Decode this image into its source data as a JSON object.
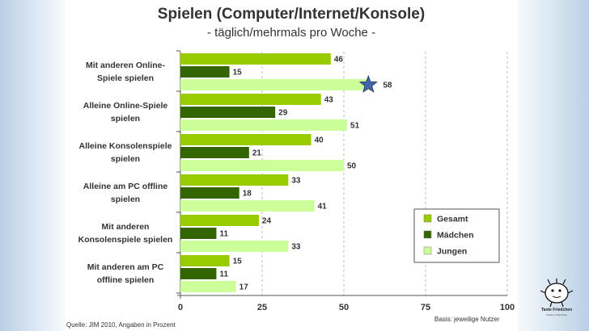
{
  "chart_data": {
    "type": "bar",
    "orientation": "horizontal",
    "title": "Spielen (Computer/Internet/Konsole)",
    "subtitle": "- täglich/mehrmals pro Woche -",
    "categories": [
      "Mit anderen Online-Spiele spielen",
      "Alleine Online-Spiele spielen",
      "Alleine Konsolenspiele spielen",
      "Alleine am PC offline spielen",
      "Mit anderen Konsolenspiele spielen",
      "Mit anderen am PC offline spielen"
    ],
    "category_lines": [
      [
        "Mit anderen Online-",
        "Spiele spielen"
      ],
      [
        "Alleine Online-Spiele",
        "spielen"
      ],
      [
        "Alleine Konsolenspiele",
        "spielen"
      ],
      [
        "Alleine am PC offline",
        "spielen"
      ],
      [
        "Mit anderen",
        "Konsolenspiele spielen"
      ],
      [
        "Mit anderen am PC",
        "offline spielen"
      ]
    ],
    "series": [
      {
        "name": "Gesamt",
        "values": [
          46,
          43,
          40,
          33,
          24,
          15
        ],
        "color": "#99cc00"
      },
      {
        "name": "Mädchen",
        "values": [
          15,
          29,
          21,
          18,
          11,
          11
        ],
        "color": "#336600"
      },
      {
        "name": "Jungen",
        "values": [
          58,
          51,
          50,
          41,
          33,
          17
        ],
        "color": "#ccff99"
      }
    ],
    "xlim": [
      0,
      100
    ],
    "xticks": [
      "0",
      "25",
      "50",
      "75",
      "100"
    ],
    "highlight": {
      "category": "Mit anderen Online-Spiele spielen",
      "series": "Jungen",
      "marker": "star"
    },
    "legend_position": "right"
  },
  "footer": {
    "source": "Quelle: JIM 2010, Angaben in Prozent",
    "basis": "Basis: jeweilige Nutzer"
  },
  "logo": {
    "name": "Tante Friedchen",
    "subtitle": "Medien & Beratung"
  },
  "colors": {
    "text": "#333333",
    "grid": "#bbbbbb",
    "star": "#4466aa"
  }
}
